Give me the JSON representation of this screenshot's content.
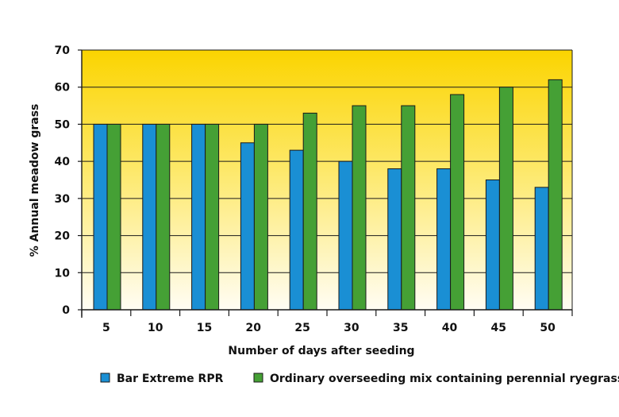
{
  "chart_data": {
    "type": "bar",
    "categories": [
      "5",
      "10",
      "15",
      "20",
      "25",
      "30",
      "35",
      "40",
      "45",
      "50"
    ],
    "series": [
      {
        "name": "Bar Extreme RPR",
        "color": "#1a8fd4",
        "values": [
          50,
          50,
          50,
          45,
          43,
          40,
          38,
          38,
          35,
          33
        ]
      },
      {
        "name": "Ordinary overseeding mix containing perennial ryegrass",
        "color": "#45a035",
        "values": [
          50,
          50,
          50,
          50,
          53,
          55,
          55,
          58,
          60,
          62
        ]
      }
    ],
    "xlabel": "Number of days after seeding",
    "ylabel": "% Annual meadow grass",
    "ylim": [
      0,
      70
    ],
    "yticks": [
      0,
      10,
      20,
      30,
      40,
      50,
      60,
      70
    ],
    "grid": true,
    "legend_position": "bottom",
    "background": {
      "top": "#fbd400",
      "bottom": "#fffdf4"
    }
  }
}
